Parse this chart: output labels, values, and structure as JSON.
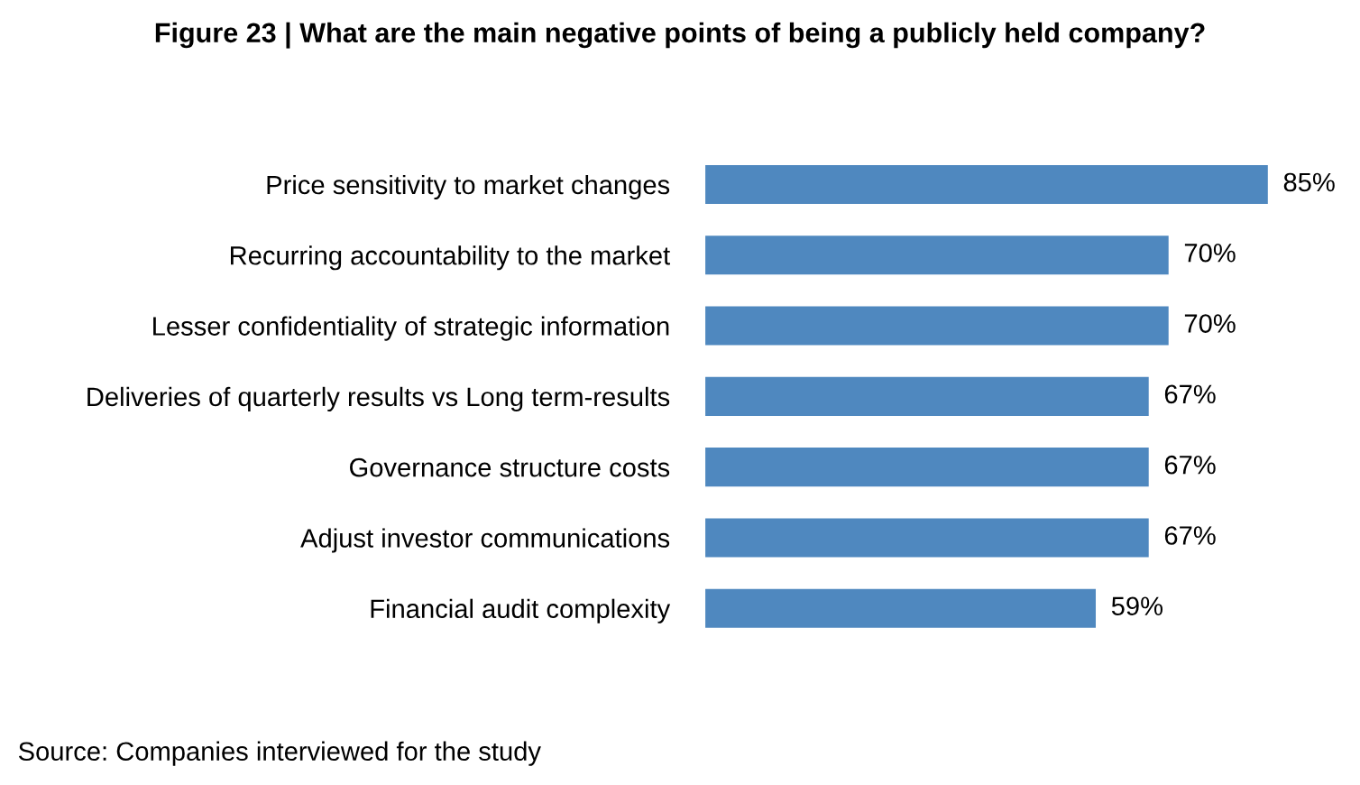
{
  "chart_data": {
    "type": "bar",
    "orientation": "horizontal",
    "title": "Figure 23 | What are the main negative points of being a publicly held company?",
    "categories": [
      "Price sensitivity to market changes",
      "Recurring accountability to the market",
      "Lesser confidentiality of strategic information",
      "Deliveries of quarterly results vs Long term-results",
      "Governance structure costs",
      "Adjust investor communications",
      "Financial audit complexity"
    ],
    "values": [
      85,
      70,
      70,
      67,
      67,
      67,
      59
    ],
    "value_labels": [
      "85%",
      "70%",
      "70%",
      "67%",
      "67%",
      "67%",
      "59%"
    ],
    "color": "#4f88bf",
    "tick_labels": "y",
    "grid": false,
    "legend": false,
    "annotations": [
      "Source: Companies interviewed for the study"
    ]
  }
}
